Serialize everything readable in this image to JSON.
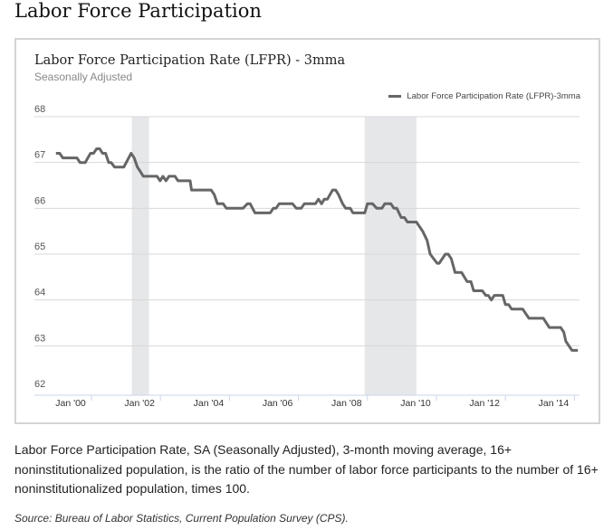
{
  "page": {
    "title": "Labor Force Participation",
    "description": "Labor Force Participation Rate, SA (Seasonally Adjusted), 3-month moving average, 16+ noninstitutionalized population, is the ratio of the number of labor force participants to the number of 16+ noninstitutionalized population, times 100.",
    "source": "Source: Bureau of Labor Statistics, Current Population Survey (CPS)."
  },
  "chart_data": {
    "type": "line",
    "title": "Labor Force Participation Rate (LFPR) - 3mma",
    "subtitle": "Seasonally Adjusted",
    "xlabel": "",
    "ylabel": "",
    "ylim": [
      62,
      68
    ],
    "xlim": [
      1998.4,
      2014.2
    ],
    "grid": true,
    "legend_position": "top-right",
    "y_ticks": [
      "62",
      "63",
      "64",
      "65",
      "66",
      "67",
      "68"
    ],
    "x_ticks": [
      {
        "year": 2000,
        "label": "Jan '00"
      },
      {
        "year": 2002,
        "label": "Jan '02"
      },
      {
        "year": 2004,
        "label": "Jan '04"
      },
      {
        "year": 2006,
        "label": "Jan '06"
      },
      {
        "year": 2008,
        "label": "Jan '08"
      },
      {
        "year": 2010,
        "label": "Jan '10"
      },
      {
        "year": 2012,
        "label": "Jan '12"
      },
      {
        "year": 2014,
        "label": "Jan '14"
      }
    ],
    "recession_bands": [
      [
        2001.17,
        2001.67
      ],
      [
        2007.92,
        2009.42
      ]
    ],
    "series": [
      {
        "name": "Labor Force Participation Rate (LFPR)-3mma",
        "color": "#666666",
        "x": [
          1998.97,
          1999.08,
          1999.17,
          1999.58,
          1999.67,
          1999.82,
          1999.97,
          2000.06,
          2000.15,
          2000.24,
          2000.32,
          2000.41,
          2000.5,
          2000.57,
          2000.67,
          2000.94,
          2001.15,
          2001.24,
          2001.33,
          2001.42,
          2001.5,
          2001.9,
          2001.99,
          2002.07,
          2002.16,
          2002.25,
          2002.42,
          2002.51,
          2002.86,
          2002.9,
          2003.47,
          2003.56,
          2003.65,
          2003.82,
          2003.91,
          2004.39,
          2004.52,
          2004.6,
          2004.74,
          2005.18,
          2005.27,
          2005.35,
          2005.44,
          2005.83,
          2005.94,
          2006.08,
          2006.17,
          2006.49,
          2006.58,
          2006.67,
          2006.75,
          2006.84,
          2006.99,
          2007.08,
          2007.16,
          2007.28,
          2007.37,
          2007.5,
          2007.58,
          2007.92,
          2008.0,
          2008.15,
          2008.27,
          2008.42,
          2008.5,
          2008.68,
          2008.77,
          2008.85,
          2008.98,
          2009.07,
          2009.16,
          2009.42,
          2009.6,
          2009.73,
          2009.82,
          2010.02,
          2010.08,
          2010.26,
          2010.34,
          2010.43,
          2010.54,
          2010.73,
          2010.89,
          2011.0,
          2011.08,
          2011.33,
          2011.43,
          2011.5,
          2011.59,
          2011.68,
          2011.92,
          2012.0,
          2012.09,
          2012.18,
          2012.5,
          2012.68,
          2013.1,
          2013.27,
          2013.6,
          2013.69,
          2013.75,
          2013.93,
          2014.1
        ],
        "y": [
          67.2,
          67.2,
          67.1,
          67.1,
          67.0,
          67.0,
          67.2,
          67.2,
          67.3,
          67.3,
          67.2,
          67.2,
          67.0,
          67.0,
          66.9,
          66.9,
          67.2,
          67.1,
          66.9,
          66.8,
          66.7,
          66.7,
          66.6,
          66.7,
          66.6,
          66.7,
          66.7,
          66.6,
          66.6,
          66.4,
          66.4,
          66.3,
          66.1,
          66.1,
          66.0,
          66.0,
          66.1,
          66.1,
          65.9,
          65.9,
          66.0,
          66.0,
          66.1,
          66.1,
          66.0,
          66.0,
          66.1,
          66.1,
          66.2,
          66.1,
          66.2,
          66.2,
          66.4,
          66.4,
          66.3,
          66.1,
          66.0,
          66.0,
          65.9,
          65.9,
          66.1,
          66.1,
          66.0,
          66.0,
          66.1,
          66.1,
          66.0,
          66.0,
          65.8,
          65.8,
          65.7,
          65.7,
          65.5,
          65.3,
          65.0,
          64.8,
          64.8,
          65.0,
          65.0,
          64.9,
          64.6,
          64.6,
          64.4,
          64.4,
          64.2,
          64.2,
          64.1,
          64.1,
          64.0,
          64.1,
          64.1,
          63.9,
          63.9,
          63.8,
          63.8,
          63.6,
          63.6,
          63.4,
          63.4,
          63.3,
          63.1,
          62.9,
          62.9
        ]
      }
    ]
  }
}
